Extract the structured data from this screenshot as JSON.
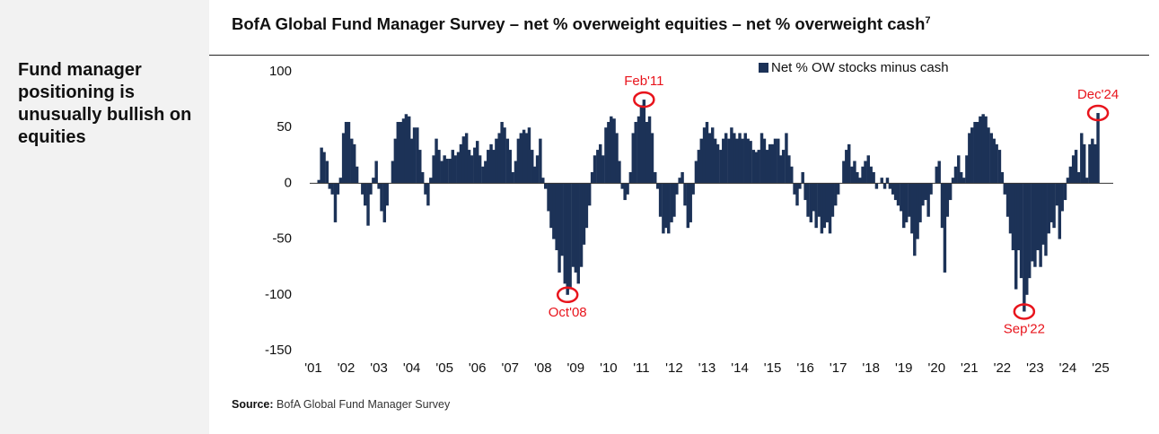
{
  "sidebar": {
    "text": "Fund manager positioning is unusually bullish on equities"
  },
  "chart_data": {
    "type": "bar",
    "title": "BofA Global Fund Manager Survey – net % overweight equities – net % overweight cash",
    "title_note": "7",
    "series": [
      {
        "name": "Net % OW stocks minus cash",
        "color": "#1c3257",
        "x": [
          2001.17,
          2001.25,
          2001.33,
          2001.42,
          2001.5,
          2001.58,
          2001.67,
          2001.75,
          2001.83,
          2001.92,
          2002,
          2002.08,
          2002.17,
          2002.25,
          2002.33,
          2002.42,
          2002.5,
          2002.58,
          2002.67,
          2002.75,
          2002.83,
          2002.92,
          2003,
          2003.08,
          2003.17,
          2003.25,
          2003.33,
          2003.42,
          2003.5,
          2003.58,
          2003.67,
          2003.75,
          2003.83,
          2003.92,
          2004,
          2004.08,
          2004.17,
          2004.25,
          2004.33,
          2004.42,
          2004.5,
          2004.58,
          2004.67,
          2004.75,
          2004.83,
          2004.92,
          2005,
          2005.08,
          2005.17,
          2005.25,
          2005.33,
          2005.42,
          2005.5,
          2005.58,
          2005.67,
          2005.75,
          2005.83,
          2005.92,
          2006,
          2006.08,
          2006.17,
          2006.25,
          2006.33,
          2006.42,
          2006.5,
          2006.58,
          2006.67,
          2006.75,
          2006.83,
          2006.92,
          2007,
          2007.08,
          2007.17,
          2007.25,
          2007.33,
          2007.42,
          2007.5,
          2007.58,
          2007.67,
          2007.75,
          2007.83,
          2007.92,
          2008,
          2008.08,
          2008.17,
          2008.25,
          2008.33,
          2008.42,
          2008.5,
          2008.58,
          2008.67,
          2008.75,
          2008.83,
          2008.92,
          2009,
          2009.08,
          2009.17,
          2009.25,
          2009.33,
          2009.42,
          2009.5,
          2009.58,
          2009.67,
          2009.75,
          2009.83,
          2009.92,
          2010,
          2010.08,
          2010.17,
          2010.25,
          2010.33,
          2010.42,
          2010.5,
          2010.58,
          2010.67,
          2010.75,
          2010.83,
          2010.92,
          2011,
          2011.08,
          2011.17,
          2011.25,
          2011.33,
          2011.42,
          2011.5,
          2011.58,
          2011.67,
          2011.75,
          2011.83,
          2011.92,
          2012,
          2012.08,
          2012.17,
          2012.25,
          2012.33,
          2012.42,
          2012.5,
          2012.58,
          2012.67,
          2012.75,
          2012.83,
          2012.92,
          2013,
          2013.08,
          2013.17,
          2013.25,
          2013.33,
          2013.42,
          2013.5,
          2013.58,
          2013.67,
          2013.75,
          2013.83,
          2013.92,
          2014,
          2014.08,
          2014.17,
          2014.25,
          2014.33,
          2014.42,
          2014.5,
          2014.58,
          2014.67,
          2014.75,
          2014.83,
          2014.92,
          2015,
          2015.08,
          2015.17,
          2015.25,
          2015.33,
          2015.42,
          2015.5,
          2015.58,
          2015.67,
          2015.75,
          2015.83,
          2015.92,
          2016,
          2016.08,
          2016.17,
          2016.25,
          2016.33,
          2016.42,
          2016.5,
          2016.58,
          2016.67,
          2016.75,
          2016.83,
          2016.92,
          2017,
          2017.08,
          2017.17,
          2017.25,
          2017.33,
          2017.42,
          2017.5,
          2017.58,
          2017.67,
          2017.75,
          2017.83,
          2017.92,
          2018,
          2018.08,
          2018.17,
          2018.25,
          2018.33,
          2018.42,
          2018.5,
          2018.58,
          2018.67,
          2018.75,
          2018.83,
          2018.92,
          2019,
          2019.08,
          2019.17,
          2019.25,
          2019.33,
          2019.42,
          2019.5,
          2019.58,
          2019.67,
          2019.75,
          2019.83,
          2019.92,
          2020,
          2020.08,
          2020.17,
          2020.25,
          2020.33,
          2020.42,
          2020.5,
          2020.58,
          2020.67,
          2020.75,
          2020.83,
          2020.92,
          2021,
          2021.08,
          2021.17,
          2021.25,
          2021.33,
          2021.42,
          2021.5,
          2021.58,
          2021.67,
          2021.75,
          2021.83,
          2021.92,
          2022,
          2022.08,
          2022.17,
          2022.25,
          2022.33,
          2022.42,
          2022.5,
          2022.58,
          2022.67,
          2022.75,
          2022.83,
          2022.92,
          2023,
          2023.08,
          2023.17,
          2023.25,
          2023.33,
          2023.42,
          2023.5,
          2023.58,
          2023.67,
          2023.75,
          2023.83,
          2023.92,
          2024,
          2024.08,
          2024.17,
          2024.25,
          2024.33,
          2024.42,
          2024.5,
          2024.58,
          2024.67,
          2024.75,
          2024.83,
          2024.92
        ],
        "values": [
          3,
          32,
          28,
          20,
          -5,
          -10,
          -35,
          -10,
          5,
          45,
          55,
          55,
          40,
          35,
          15,
          0,
          -10,
          -20,
          -38,
          -10,
          5,
          20,
          -5,
          -25,
          -35,
          -20,
          0,
          20,
          40,
          55,
          55,
          58,
          62,
          60,
          40,
          50,
          50,
          30,
          10,
          -10,
          -20,
          5,
          25,
          40,
          30,
          20,
          25,
          22,
          22,
          30,
          25,
          28,
          35,
          42,
          45,
          30,
          25,
          32,
          38,
          25,
          15,
          20,
          30,
          35,
          30,
          40,
          45,
          55,
          50,
          40,
          30,
          10,
          20,
          40,
          45,
          48,
          45,
          50,
          30,
          15,
          25,
          40,
          5,
          -5,
          -25,
          -40,
          -50,
          -60,
          -80,
          -65,
          -90,
          -100,
          -95,
          -75,
          -80,
          -90,
          -75,
          -55,
          -40,
          -20,
          10,
          25,
          30,
          35,
          25,
          50,
          55,
          60,
          58,
          45,
          20,
          -5,
          -15,
          -10,
          10,
          45,
          55,
          60,
          70,
          75,
          55,
          60,
          45,
          10,
          -5,
          -30,
          -45,
          -40,
          -45,
          -35,
          -30,
          -10,
          5,
          10,
          -20,
          -40,
          -35,
          -10,
          20,
          30,
          40,
          50,
          55,
          45,
          50,
          40,
          35,
          30,
          40,
          45,
          40,
          50,
          45,
          40,
          45,
          40,
          45,
          40,
          38,
          30,
          28,
          30,
          45,
          40,
          30,
          35,
          35,
          40,
          40,
          25,
          30,
          45,
          25,
          15,
          -10,
          -20,
          -5,
          10,
          -15,
          -30,
          -35,
          -25,
          -40,
          -30,
          -45,
          -40,
          -35,
          -45,
          -30,
          -20,
          -10,
          0,
          20,
          30,
          35,
          15,
          20,
          10,
          5,
          15,
          20,
          25,
          15,
          10,
          -5,
          0,
          5,
          -5,
          5,
          -5,
          -10,
          -15,
          -20,
          -25,
          -40,
          -35,
          -30,
          -45,
          -65,
          -50,
          -35,
          -20,
          -15,
          -30,
          -10,
          0,
          15,
          20,
          -40,
          -80,
          -30,
          -15,
          5,
          15,
          25,
          10,
          5,
          25,
          45,
          50,
          55,
          55,
          60,
          62,
          60,
          50,
          45,
          40,
          35,
          30,
          10,
          -10,
          -30,
          -45,
          -60,
          -95,
          -60,
          -85,
          -115,
          -100,
          -85,
          -70,
          -75,
          -60,
          -75,
          -55,
          -65,
          -45,
          -35,
          -40,
          -20,
          -50,
          -25,
          -15,
          5,
          15,
          25,
          30,
          10,
          45,
          35,
          5,
          35,
          40,
          35,
          63
        ]
      }
    ],
    "annotations": [
      {
        "text": "Oct'08",
        "x": 2008.75,
        "y": -100,
        "position": "below"
      },
      {
        "text": "Feb'11",
        "x": 2011.08,
        "y": 75,
        "position": "above"
      },
      {
        "text": "Sep'22",
        "x": 2022.67,
        "y": -115,
        "position": "below"
      },
      {
        "text": "Dec'24",
        "x": 2024.92,
        "y": 63,
        "position": "above"
      }
    ],
    "annotation_color": "#e8141c",
    "xlim": [
      2000.8,
      2025.4
    ],
    "xticks": [
      {
        "value": 2001,
        "label": "'01"
      },
      {
        "value": 2002,
        "label": "'02"
      },
      {
        "value": 2003,
        "label": "'03"
      },
      {
        "value": 2004,
        "label": "'04"
      },
      {
        "value": 2005,
        "label": "'05"
      },
      {
        "value": 2006,
        "label": "'06"
      },
      {
        "value": 2007,
        "label": "'07"
      },
      {
        "value": 2008,
        "label": "'08"
      },
      {
        "value": 2009,
        "label": "'09"
      },
      {
        "value": 2010,
        "label": "'10"
      },
      {
        "value": 2011,
        "label": "'11"
      },
      {
        "value": 2012,
        "label": "'12"
      },
      {
        "value": 2013,
        "label": "'13"
      },
      {
        "value": 2014,
        "label": "'14"
      },
      {
        "value": 2015,
        "label": "'15"
      },
      {
        "value": 2016,
        "label": "'16"
      },
      {
        "value": 2017,
        "label": "'17"
      },
      {
        "value": 2018,
        "label": "'18"
      },
      {
        "value": 2019,
        "label": "'19"
      },
      {
        "value": 2020,
        "label": "'20"
      },
      {
        "value": 2021,
        "label": "'21"
      },
      {
        "value": 2022,
        "label": "'22"
      },
      {
        "value": 2023,
        "label": "'23"
      },
      {
        "value": 2024,
        "label": "'24"
      },
      {
        "value": 2025,
        "label": "'25"
      }
    ],
    "ylim": [
      -150,
      100
    ],
    "yticks": [
      100,
      50,
      0,
      -50,
      -100,
      -150
    ],
    "grid": false,
    "legend": "top",
    "source_label": "Source:",
    "source_text": "BofA Global Fund Manager Survey"
  }
}
